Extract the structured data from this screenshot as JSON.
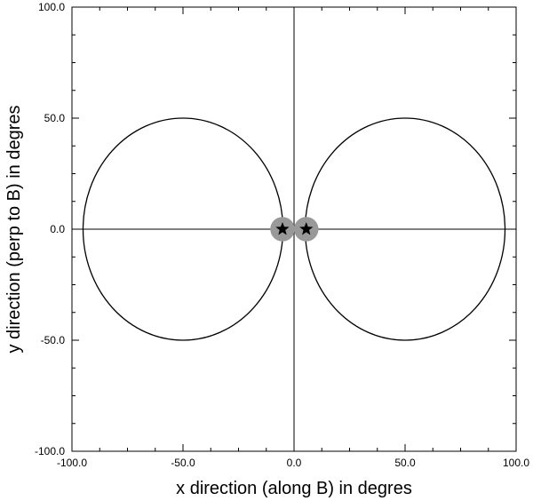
{
  "chart_data": {
    "type": "line",
    "title": "",
    "xlabel": "x direction (along B) in degres",
    "ylabel": "y direction (perp to B) in degres",
    "xlim": [
      -100,
      100
    ],
    "ylim": [
      -100,
      100
    ],
    "grid": false,
    "x_ticks": [
      -100,
      -50,
      0,
      50,
      100
    ],
    "y_ticks": [
      -100,
      -50,
      0,
      50,
      100
    ],
    "x_tick_labels": [
      "-100.0",
      "-50.0",
      "0.0",
      "50.0",
      "100.0"
    ],
    "y_tick_labels": [
      "-100.0",
      "-50.0",
      "0.0",
      "50.0",
      "100.0"
    ],
    "minor_tick_step": 12.5,
    "reference_lines": {
      "x": 0,
      "y": 0
    },
    "series": [
      {
        "shape": "ellipse",
        "center": [
          -50,
          0
        ],
        "radius_x": 45,
        "radius_y": 50,
        "color": "#000000"
      },
      {
        "shape": "ellipse",
        "center": [
          50,
          0
        ],
        "radius_x": 45,
        "radius_y": 50,
        "color": "#000000"
      }
    ],
    "markers": [
      {
        "x": -5.2,
        "y": 0,
        "symbol": "star",
        "halo_radius": 5.5,
        "color": "#000000",
        "halo_color": "#999999"
      },
      {
        "x": 5.5,
        "y": 0,
        "symbol": "star",
        "halo_radius": 5.5,
        "color": "#000000",
        "halo_color": "#999999"
      }
    ]
  }
}
